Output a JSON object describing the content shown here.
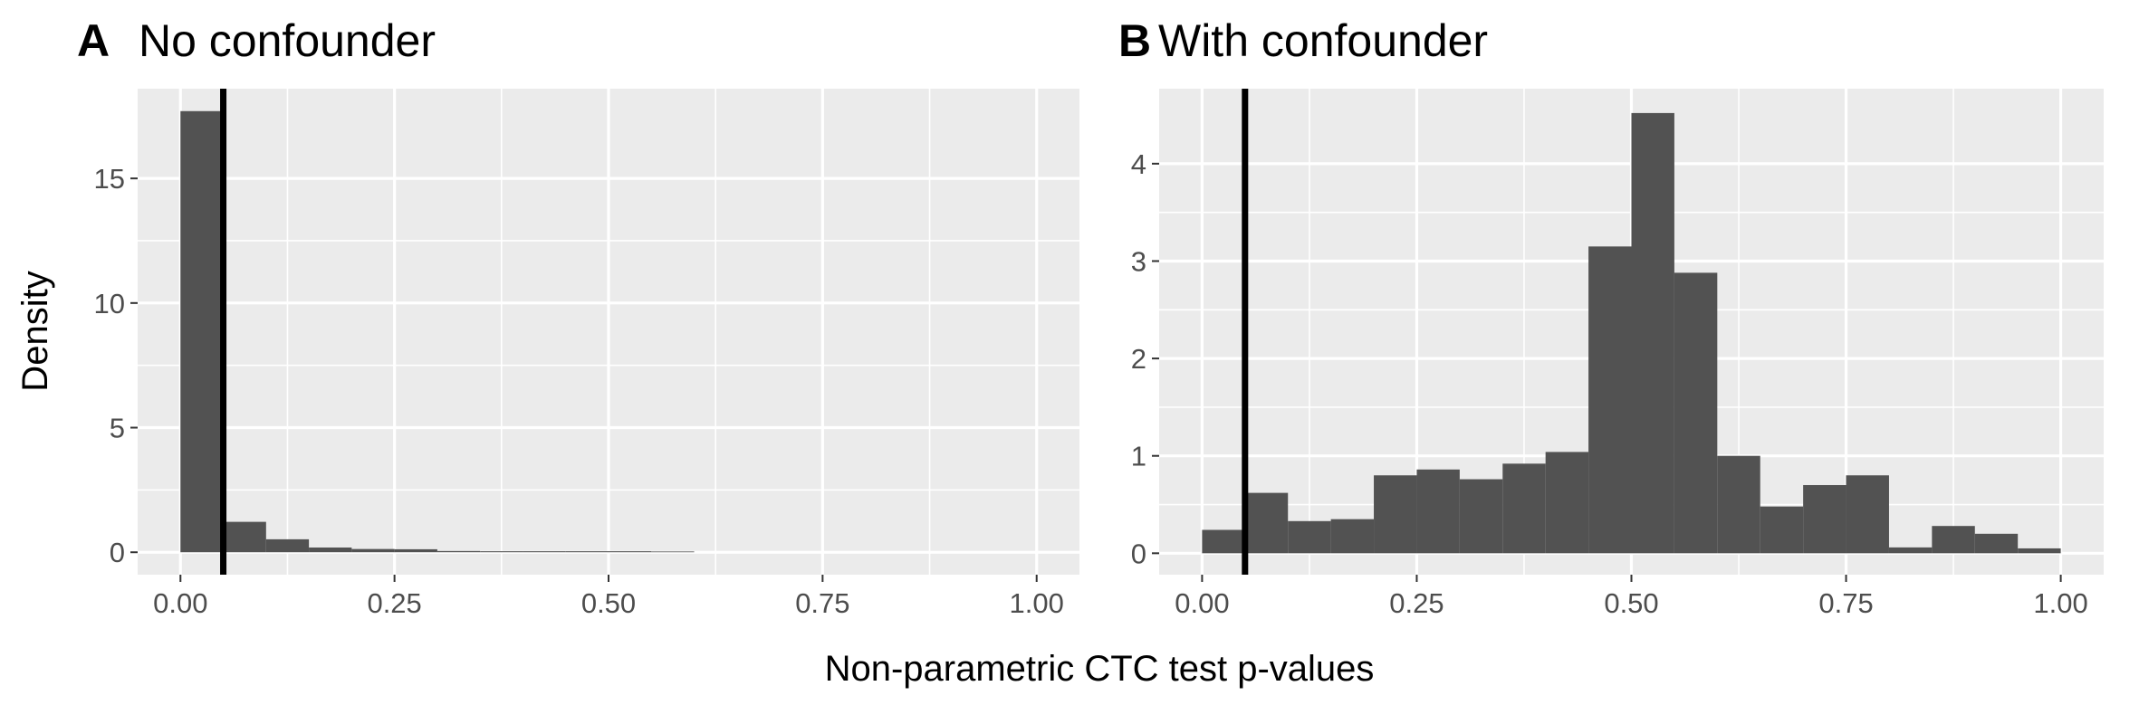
{
  "colors": {
    "panel_background": "#ebebeb",
    "grid_major": "#ffffff",
    "bar_fill": "#525252",
    "reference_line": "#000000",
    "tick_text": "#4d4d4d"
  },
  "shared": {
    "xlabel": "Non-parametric CTC test p-values",
    "ylabel": "Density"
  },
  "chart_data": [
    {
      "type": "bar",
      "panel_tag": "A",
      "title": "No confounder",
      "bin_width": 0.05,
      "bins_x_start": [
        0.0,
        0.05,
        0.1,
        0.15,
        0.2,
        0.25,
        0.3,
        0.35,
        0.4,
        0.45,
        0.5,
        0.55
      ],
      "values": [
        17.7,
        1.22,
        0.52,
        0.19,
        0.13,
        0.12,
        0.05,
        0.04,
        0.04,
        0.04,
        0.04,
        0.03
      ],
      "reference_line_x": 0.05,
      "xlim": [
        -0.05,
        1.05
      ],
      "ylim": [
        -0.9,
        18.6
      ],
      "xticks": [
        0,
        0.25,
        0.5,
        0.75,
        1
      ],
      "xtick_labels": [
        "0.00",
        "0.25",
        "0.50",
        "0.75",
        "1.00"
      ],
      "yticks": [
        0,
        5,
        10,
        15
      ],
      "ytick_labels": [
        "0",
        "5",
        "10",
        "15"
      ],
      "grid": true
    },
    {
      "type": "bar",
      "panel_tag": "B",
      "title": "With confounder",
      "bin_width": 0.05,
      "bins_x_start": [
        0.0,
        0.05,
        0.1,
        0.15,
        0.2,
        0.25,
        0.3,
        0.35,
        0.4,
        0.45,
        0.5,
        0.55,
        0.6,
        0.65,
        0.7,
        0.75,
        0.8,
        0.85,
        0.9,
        0.95
      ],
      "values": [
        0.24,
        0.62,
        0.33,
        0.35,
        0.8,
        0.86,
        0.76,
        0.92,
        1.04,
        3.15,
        4.52,
        2.88,
        1.0,
        0.48,
        0.7,
        0.8,
        0.06,
        0.28,
        0.2,
        0.05
      ],
      "reference_line_x": 0.05,
      "xlim": [
        -0.05,
        1.05
      ],
      "ylim": [
        -0.22,
        4.77
      ],
      "xticks": [
        0,
        0.25,
        0.5,
        0.75,
        1
      ],
      "xtick_labels": [
        "0.00",
        "0.25",
        "0.50",
        "0.75",
        "1.00"
      ],
      "yticks": [
        0,
        1,
        2,
        3,
        4
      ],
      "ytick_labels": [
        "0",
        "1",
        "2",
        "3",
        "4"
      ],
      "grid": true
    }
  ]
}
